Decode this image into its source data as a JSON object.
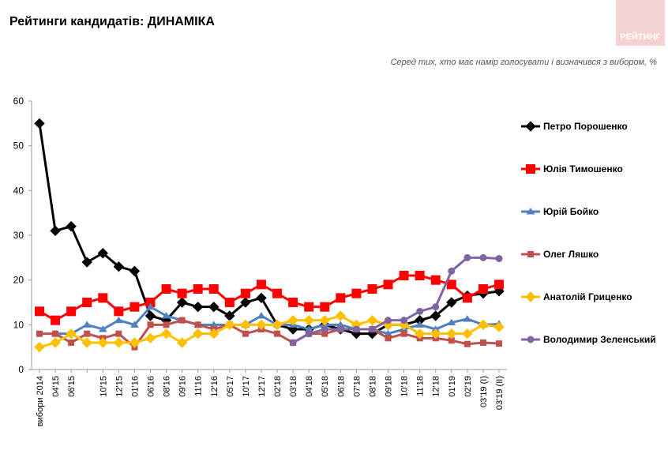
{
  "chart_data": {
    "type": "line",
    "title": "Рейтинги кандидатів: ДИНАМІКА",
    "logo": "РЕЙТИНГ",
    "subtitle": "Серед тих, хто має намір голосувати і визначився з вибором, %",
    "categories": [
      "вибори 2014",
      "04'15",
      "06'15",
      null,
      "10'15",
      "12'15",
      "01'16",
      "06'16",
      "08'16",
      "09'16",
      "11'16",
      "12'16",
      "05'17",
      "10'17",
      "12'17",
      "02'18",
      "03'18",
      "04'18",
      "05'18",
      "06'18",
      "07'18",
      "08'18",
      "09'18",
      "10'18",
      "11'18",
      "12'18",
      "01'19",
      "02'19",
      "03'19 (I)",
      "03'19 (II)"
    ],
    "ylim": [
      0,
      60
    ],
    "yticks": [
      0,
      10,
      20,
      30,
      40,
      50,
      60
    ],
    "grid": false,
    "series": [
      {
        "name": "Петро Порошенко",
        "color": "#000000",
        "marker": "diamond",
        "values": [
          55,
          31,
          32,
          24,
          26,
          23,
          22,
          12,
          11,
          15,
          14,
          14,
          12,
          15,
          16,
          10,
          9,
          9,
          10,
          9,
          8,
          8,
          10,
          10,
          11,
          12,
          15,
          16.5,
          17,
          17.5
        ]
      },
      {
        "name": "Юлія Тимошенко",
        "color": "#ff0000",
        "marker": "square",
        "values": [
          13,
          11,
          13,
          15,
          16,
          13,
          14,
          15,
          18,
          17,
          18,
          18,
          15,
          17,
          19,
          17,
          15,
          14,
          14,
          16,
          17,
          18,
          19,
          21,
          21,
          20,
          19,
          16,
          18,
          19
        ]
      },
      {
        "name": "Юрій Бойко",
        "color": "#4f81bd",
        "marker": "triangle",
        "values": [
          null,
          8,
          8,
          10,
          9,
          11,
          10,
          14,
          12,
          11,
          10,
          10,
          10,
          10,
          12,
          10,
          10,
          9,
          10,
          10,
          9,
          9,
          8,
          9,
          10,
          9,
          10.5,
          11.3,
          10,
          10.2
        ]
      },
      {
        "name": "Олег Ляшко",
        "color": "#c0504d",
        "marker": "smallsquare",
        "values": [
          8,
          8,
          6,
          8,
          7,
          8,
          5,
          10,
          10,
          11,
          10,
          9,
          10,
          8,
          9,
          8,
          6,
          8,
          8,
          9,
          9,
          9,
          7,
          8,
          7,
          7,
          6.5,
          5.7,
          6,
          5.8
        ]
      },
      {
        "name": "Анатолій Гриценко",
        "color": "#ffc000",
        "marker": "diamond",
        "values": [
          5,
          6,
          8,
          6,
          6,
          6,
          6,
          7,
          8,
          6,
          8,
          8,
          10,
          10,
          10,
          10,
          11,
          11,
          11,
          12,
          10,
          11,
          10,
          10,
          8,
          8,
          8,
          8,
          10,
          9.5
        ]
      },
      {
        "name": "Володимир Зеленський",
        "color": "#8064a2",
        "marker": "circle",
        "values": [
          null,
          null,
          null,
          null,
          null,
          null,
          null,
          null,
          null,
          null,
          null,
          null,
          null,
          null,
          null,
          null,
          6,
          8,
          9,
          9,
          9,
          9,
          11,
          11,
          13,
          14,
          22,
          25,
          25,
          24.8
        ]
      }
    ]
  }
}
